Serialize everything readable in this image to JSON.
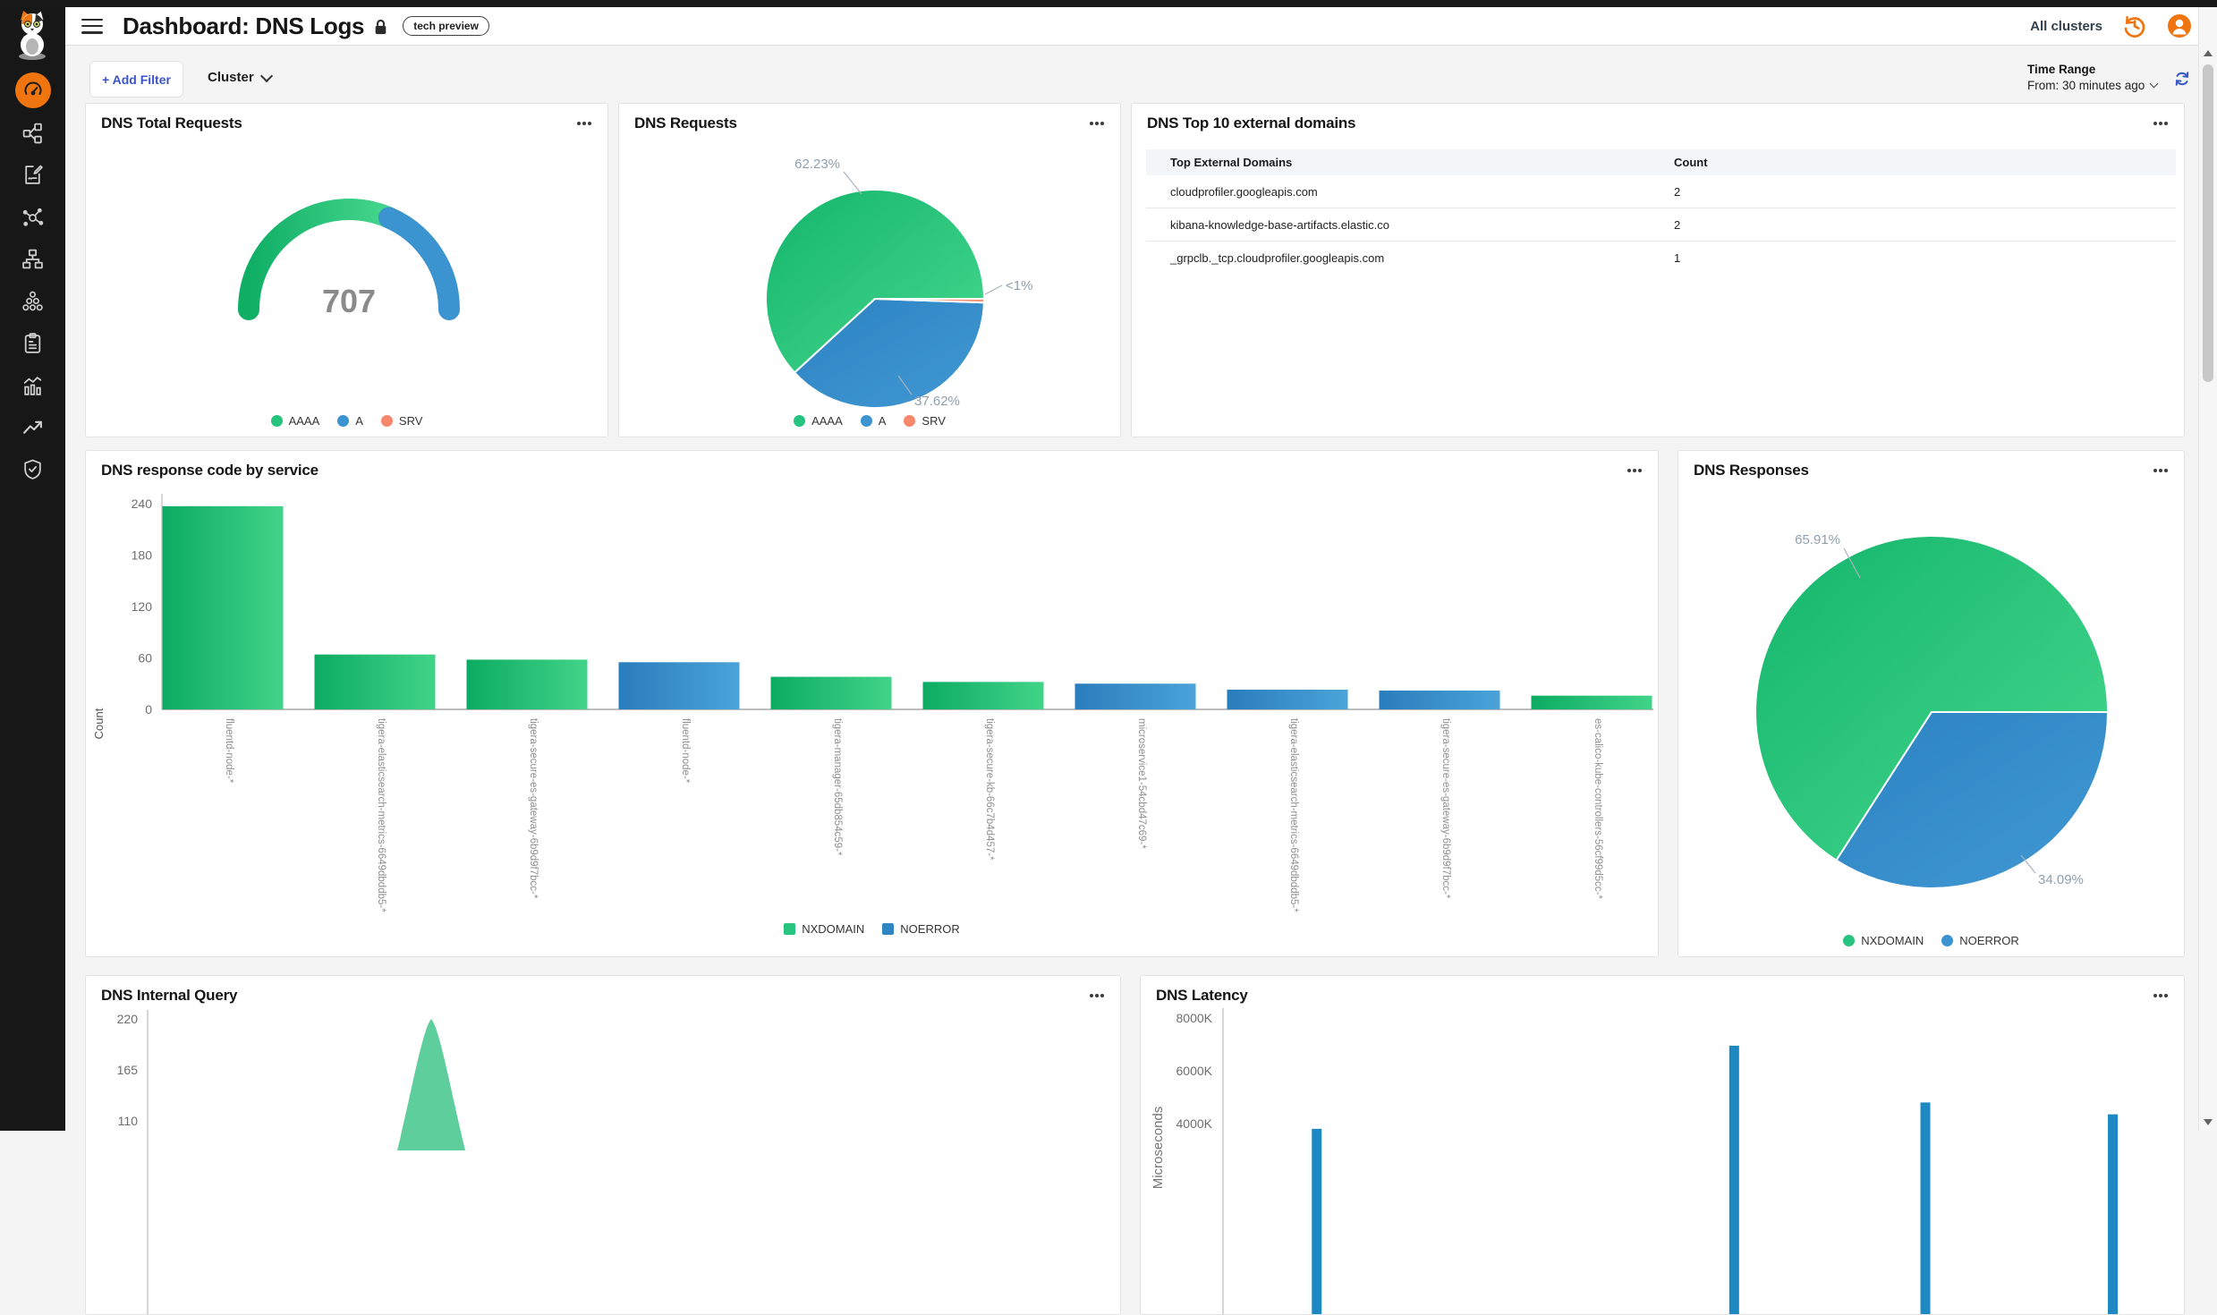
{
  "header": {
    "title": "Dashboard: DNS Logs",
    "badge": "tech preview",
    "clusters_label": "All clusters"
  },
  "filter_bar": {
    "add_filter_label": "+ Add Filter",
    "cluster_label": "Cluster",
    "time_range_label": "Time Range",
    "time_range_value": "From: 30 minutes ago"
  },
  "sidebar": {
    "icons": [
      "calico-logo",
      "dashboards",
      "service-graph",
      "policies",
      "flow-visualizations",
      "network-topology",
      "clusters",
      "compliance-reports",
      "statistics",
      "trends",
      "threat-defense"
    ]
  },
  "panels": {
    "dns_total_requests": {
      "title": "DNS Total Requests"
    },
    "dns_requests": {
      "title": "DNS Requests"
    },
    "dns_top_domains": {
      "title": "DNS Top 10 external domains",
      "columns": [
        "Top External Domains",
        "Count"
      ],
      "rows": [
        [
          "cloudprofiler.googleapis.com",
          "2"
        ],
        [
          "kibana-knowledge-base-artifacts.elastic.co",
          "2"
        ],
        [
          "_grpclb._tcp.cloudprofiler.googleapis.com",
          "1"
        ]
      ]
    },
    "dns_response_code": {
      "title": "DNS response code by service"
    },
    "dns_responses": {
      "title": "DNS Responses"
    },
    "dns_internal_query": {
      "title": "DNS Internal Query"
    },
    "dns_latency": {
      "title": "DNS Latency"
    }
  },
  "chart_data": [
    {
      "id": "dns_total_requests",
      "type": "gauge",
      "value": "707",
      "segments": [
        {
          "name": "AAAA",
          "pct": 62.23,
          "color": "#26c47e",
          "c0": "#0fae65",
          "c1": "#45d68c"
        },
        {
          "name": "A",
          "pct": 37.62,
          "color": "#3b93cf",
          "c0": "#2d83c2",
          "c1": "#47a2d9"
        },
        {
          "name": "SRV",
          "pct": 0.15,
          "color": "#f8876c",
          "c0": "#f8876c",
          "c1": "#f8876c"
        }
      ]
    },
    {
      "id": "dns_requests",
      "type": "pie",
      "slices": [
        {
          "name": "AAAA",
          "pct": 62.23,
          "label": "62.23%",
          "color": "#26c47e",
          "c0": "#14b56c",
          "c1": "#46d88e"
        },
        {
          "name": "A",
          "pct": 37.62,
          "label": "37.62%",
          "color": "#3b93cf",
          "c0": "#2d83c2",
          "c1": "#4098d3"
        },
        {
          "name": "SRV",
          "pct": 0.15,
          "label": "<1%",
          "color": "#f8876c",
          "c0": "#f8876c",
          "c1": "#fa9a82"
        }
      ]
    },
    {
      "id": "dns_response_code",
      "type": "bar",
      "ylabel": "Count",
      "ylim": [
        0,
        240
      ],
      "yticks": [
        0,
        60,
        120,
        180,
        240
      ],
      "categories": [
        "fluentd-node-*",
        "tigera-elasticsearch-metrics-6649dbddb5-*",
        "tigera-secure-es-gateway-6b9d9f7bcc-*",
        "fluentd-node-*",
        "tigera-manager-65db854c59-*",
        "tigera-secure-kb-66c7b4d457-*",
        "microservice1-54cbd47c69-*",
        "tigera-elasticsearch-metrics-6649dbddb5-*",
        "tigera-secure-es-gateway-6b9d9f7bcc-*",
        "es-calico-kube-controllers-56cf99d5cc-*"
      ],
      "values": [
        237,
        64,
        58,
        55,
        38,
        32,
        30,
        23,
        22,
        16
      ],
      "series_by_bar": [
        "NXDOMAIN",
        "NXDOMAIN",
        "NXDOMAIN",
        "NOERROR",
        "NXDOMAIN",
        "NXDOMAIN",
        "NOERROR",
        "NOERROR",
        "NOERROR",
        "NXDOMAIN"
      ],
      "legend": [
        {
          "name": "NXDOMAIN",
          "color": "#26c47e"
        },
        {
          "name": "NOERROR",
          "color": "#2f86c3"
        }
      ]
    },
    {
      "id": "dns_responses",
      "type": "pie",
      "slices": [
        {
          "name": "NXDOMAIN",
          "pct": 65.91,
          "label": "65.91%",
          "color": "#26c47e",
          "c0": "#14b56c",
          "c1": "#46d88e"
        },
        {
          "name": "NOERROR",
          "pct": 34.09,
          "label": "34.09%",
          "color": "#3b93cf",
          "c0": "#2d83c2",
          "c1": "#4098d3"
        }
      ]
    },
    {
      "id": "dns_internal_query",
      "type": "area",
      "yticks": [
        220,
        165,
        110
      ],
      "peak": {
        "value": 220,
        "x_frac": 0.296
      },
      "color": "#5ecf9c"
    },
    {
      "id": "dns_latency",
      "type": "bar",
      "ylabel": "Microseconds",
      "yticks": [
        "8000K",
        "6000K",
        "4000K"
      ],
      "bars": [
        {
          "x_frac": 0.099,
          "value_k": 3800
        },
        {
          "x_frac": 0.54,
          "value_k": 6950
        },
        {
          "x_frac": 0.742,
          "value_k": 4800
        },
        {
          "x_frac": 0.94,
          "value_k": 4350
        }
      ],
      "color": "#1e88c2"
    }
  ]
}
